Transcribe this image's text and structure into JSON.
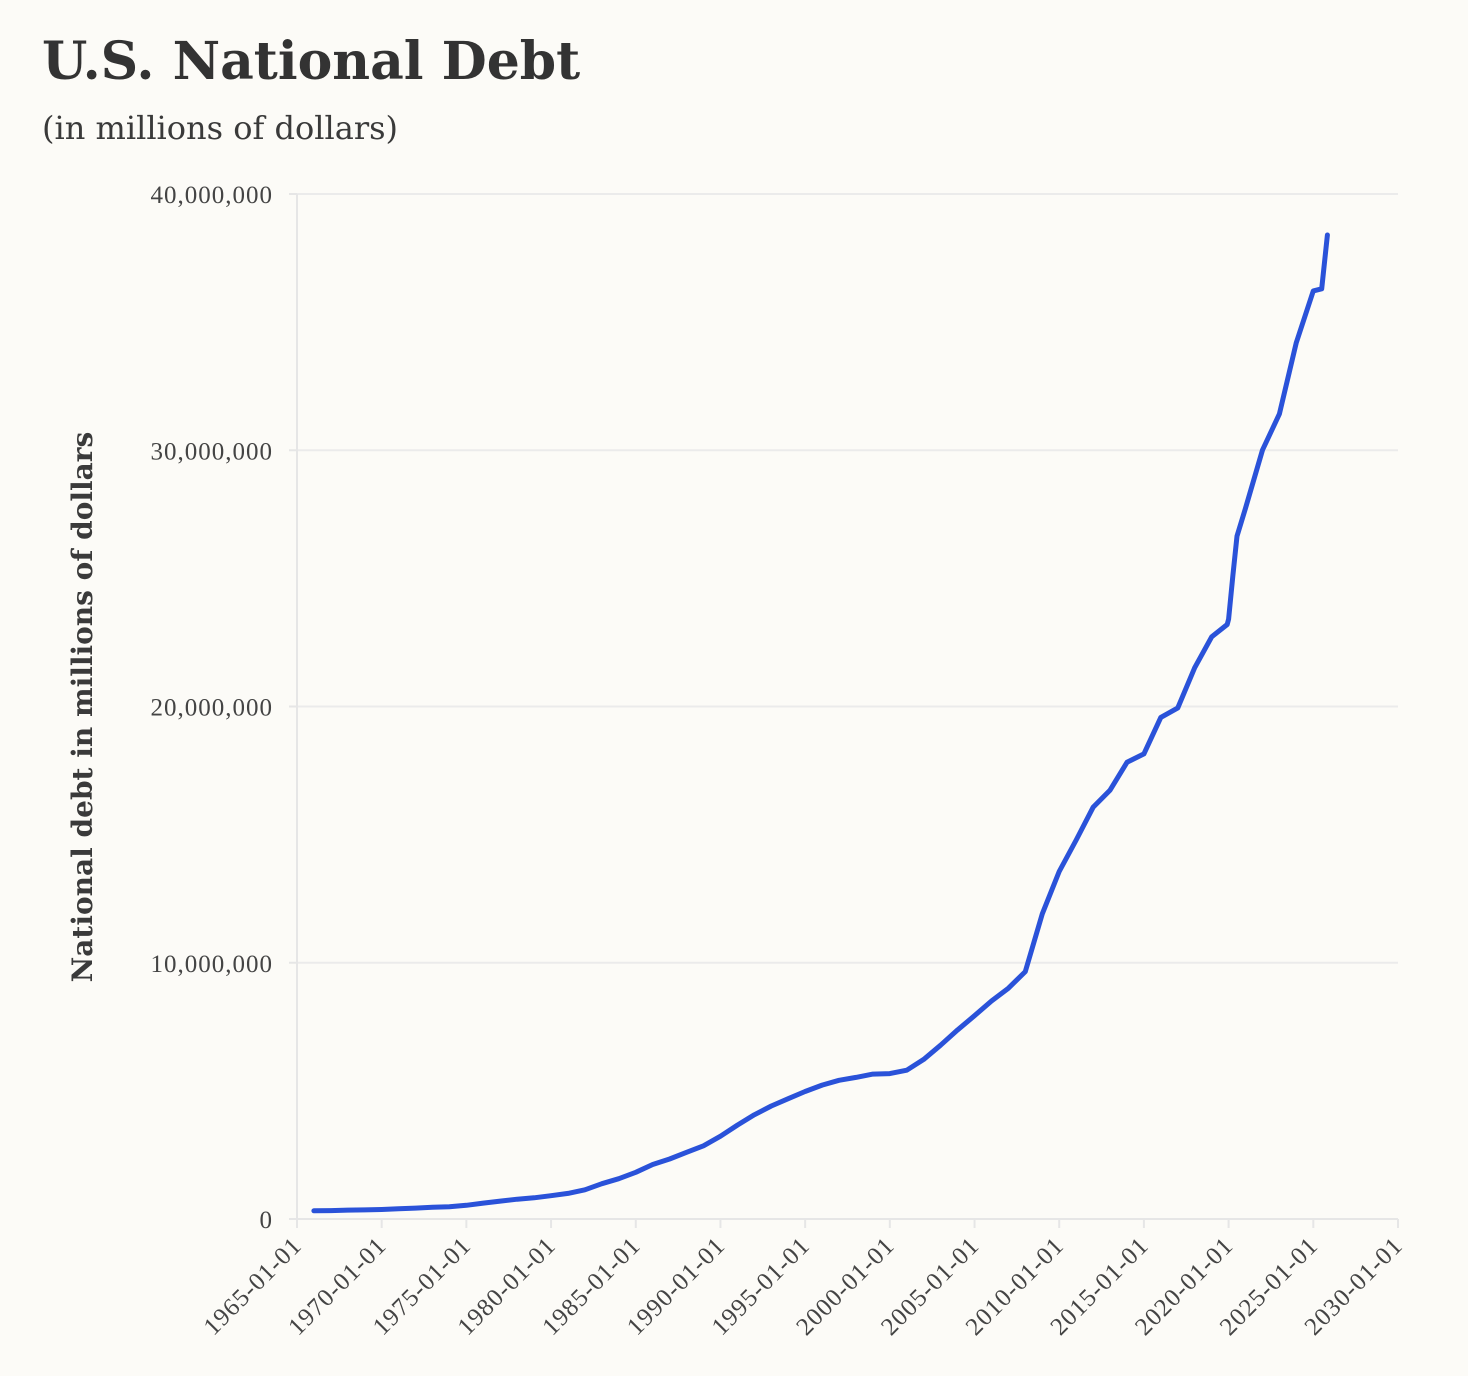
{
  "chart_data": {
    "type": "line",
    "title": "U.S. National Debt",
    "subtitle": "(in millions of dollars)",
    "xlabel": "",
    "ylabel": "National debt in millions of dollars",
    "xlim": [
      "1965-01-01",
      "2030-01-01"
    ],
    "ylim": [
      0,
      40000000
    ],
    "xticks": [
      "1965-01-01",
      "1970-01-01",
      "1975-01-01",
      "1980-01-01",
      "1985-01-01",
      "1990-01-01",
      "1995-01-01",
      "2000-01-01",
      "2005-01-01",
      "2010-01-01",
      "2015-01-01",
      "2020-01-01",
      "2025-01-01",
      "2030-01-01"
    ],
    "yticks": [
      {
        "value": 0,
        "label": "0"
      },
      {
        "value": 10000000,
        "label": "10,000,000"
      },
      {
        "value": 20000000,
        "label": "20,000,000"
      },
      {
        "value": 30000000,
        "label": "30,000,000"
      },
      {
        "value": 40000000,
        "label": "40,000,000"
      }
    ],
    "grid": true,
    "line_color": "#2a52d9",
    "series": [
      {
        "name": "",
        "points": [
          [
            "1966-01-01",
            320000
          ],
          [
            "1967-01-01",
            326000
          ],
          [
            "1968-01-01",
            348000
          ],
          [
            "1969-01-01",
            354000
          ],
          [
            "1970-01-01",
            370000
          ],
          [
            "1971-01-01",
            398000
          ],
          [
            "1972-01-01",
            427000
          ],
          [
            "1973-01-01",
            458000
          ],
          [
            "1974-01-01",
            475000
          ],
          [
            "1975-01-01",
            533000
          ],
          [
            "1976-01-01",
            620000
          ],
          [
            "1977-01-01",
            699000
          ],
          [
            "1978-01-01",
            772000
          ],
          [
            "1979-01-01",
            827000
          ],
          [
            "1980-01-01",
            908000
          ],
          [
            "1981-01-01",
            998000
          ],
          [
            "1982-01-01",
            1140000
          ],
          [
            "1983-01-01",
            1377000
          ],
          [
            "1984-01-01",
            1572000
          ],
          [
            "1985-01-01",
            1823000
          ],
          [
            "1986-01-01",
            2125000
          ],
          [
            "1987-01-01",
            2340000
          ],
          [
            "1988-01-01",
            2602000
          ],
          [
            "1989-01-01",
            2857000
          ],
          [
            "1990-01-01",
            3233000
          ],
          [
            "1991-01-01",
            3665000
          ],
          [
            "1992-01-01",
            4065000
          ],
          [
            "1993-01-01",
            4411000
          ],
          [
            "1994-01-01",
            4693000
          ],
          [
            "1995-01-01",
            4974000
          ],
          [
            "1996-01-01",
            5225000
          ],
          [
            "1997-01-01",
            5413000
          ],
          [
            "1998-01-01",
            5526000
          ],
          [
            "1999-01-01",
            5656000
          ],
          [
            "2000-01-01",
            5674000
          ],
          [
            "2001-01-01",
            5807000
          ],
          [
            "2002-01-01",
            6228000
          ],
          [
            "2003-01-01",
            6783000
          ],
          [
            "2004-01-01",
            7379000
          ],
          [
            "2005-01-01",
            7933000
          ],
          [
            "2006-01-01",
            8507000
          ],
          [
            "2007-01-01",
            9008000
          ],
          [
            "2008-01-01",
            9654000
          ],
          [
            "2009-01-01",
            11910000
          ],
          [
            "2010-01-01",
            13562000
          ],
          [
            "2011-01-01",
            14790000
          ],
          [
            "2012-01-01",
            16066000
          ],
          [
            "2013-01-01",
            16738000
          ],
          [
            "2014-01-01",
            17824000
          ],
          [
            "2015-01-01",
            18151000
          ],
          [
            "2016-01-01",
            19573000
          ],
          [
            "2017-01-01",
            19947000
          ],
          [
            "2018-01-01",
            21516000
          ],
          [
            "2019-01-01",
            22719000
          ],
          [
            "2019-12-01",
            23201000
          ],
          [
            "2020-01-01",
            23410000
          ],
          [
            "2020-04-01",
            25080000
          ],
          [
            "2020-07-01",
            26650000
          ],
          [
            "2021-01-01",
            27750000
          ],
          [
            "2022-01-01",
            30010000
          ],
          [
            "2023-01-01",
            31420000
          ],
          [
            "2024-01-01",
            34200000
          ],
          [
            "2025-01-01",
            36220000
          ],
          [
            "2025-07-01",
            36300000
          ],
          [
            "2025-11-01",
            38400000
          ]
        ]
      }
    ]
  }
}
